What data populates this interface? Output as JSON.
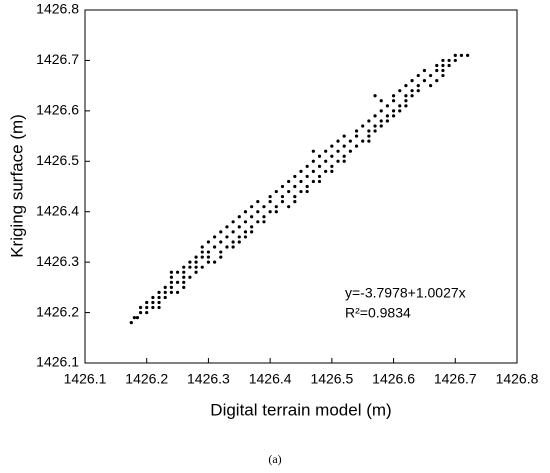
{
  "chart_data": {
    "type": "scatter",
    "x_label": "Digital terrain model (m)",
    "y_label": "Kriging surface (m)",
    "caption": "(a)",
    "annotations": [
      "y=-3.7978+1.0027x",
      "R²=0.9834"
    ],
    "color": "#000000",
    "xlim": [
      1426.1,
      1426.8
    ],
    "ylim": [
      1426.1,
      1426.8
    ],
    "xticks": [
      1426.1,
      1426.2,
      1426.3,
      1426.4,
      1426.5,
      1426.6,
      1426.7,
      1426.8
    ],
    "yticks": [
      1426.1,
      1426.2,
      1426.3,
      1426.4,
      1426.5,
      1426.6,
      1426.7,
      1426.8
    ],
    "grid": false,
    "x": [
      1426.175,
      1426.18,
      1426.185,
      1426.19,
      1426.2,
      1426.19,
      1426.2,
      1426.21,
      1426.22,
      1426.2,
      1426.21,
      1426.22,
      1426.21,
      1426.22,
      1426.23,
      1426.22,
      1426.23,
      1426.24,
      1426.25,
      1426.23,
      1426.24,
      1426.26,
      1426.24,
      1426.25,
      1426.26,
      1426.24,
      1426.26,
      1426.27,
      1426.24,
      1426.25,
      1426.26,
      1426.28,
      1426.26,
      1426.27,
      1426.28,
      1426.29,
      1426.27,
      1426.28,
      1426.3,
      1426.31,
      1426.28,
      1426.29,
      1426.3,
      1426.32,
      1426.29,
      1426.3,
      1426.32,
      1426.29,
      1426.31,
      1426.33,
      1426.34,
      1426.3,
      1426.32,
      1426.34,
      1426.35,
      1426.31,
      1426.33,
      1426.35,
      1426.36,
      1426.32,
      1426.34,
      1426.36,
      1426.37,
      1426.33,
      1426.35,
      1426.37,
      1426.34,
      1426.36,
      1426.38,
      1426.39,
      1426.35,
      1426.37,
      1426.39,
      1426.36,
      1426.38,
      1426.4,
      1426.41,
      1426.37,
      1426.39,
      1426.41,
      1426.43,
      1426.38,
      1426.4,
      1426.42,
      1426.44,
      1426.4,
      1426.42,
      1426.44,
      1426.41,
      1426.43,
      1426.45,
      1426.46,
      1426.42,
      1426.44,
      1426.46,
      1426.43,
      1426.45,
      1426.47,
      1426.48,
      1426.44,
      1426.46,
      1426.48,
      1426.45,
      1426.47,
      1426.49,
      1426.5,
      1426.46,
      1426.48,
      1426.5,
      1426.47,
      1426.49,
      1426.51,
      1426.52,
      1426.48,
      1426.5,
      1426.52,
      1426.47,
      1426.49,
      1426.51,
      1426.53,
      1426.5,
      1426.52,
      1426.54,
      1426.51,
      1426.53,
      1426.55,
      1426.56,
      1426.52,
      1426.54,
      1426.56,
      1426.54,
      1426.56,
      1426.57,
      1426.55,
      1426.57,
      1426.58,
      1426.56,
      1426.58,
      1426.59,
      1426.57,
      1426.59,
      1426.6,
      1426.58,
      1426.6,
      1426.61,
      1426.59,
      1426.61,
      1426.62,
      1426.58,
      1426.6,
      1426.62,
      1426.57,
      1426.6,
      1426.62,
      1426.63,
      1426.61,
      1426.63,
      1426.64,
      1426.62,
      1426.64,
      1426.66,
      1426.63,
      1426.65,
      1426.67,
      1426.64,
      1426.66,
      1426.68,
      1426.65,
      1426.67,
      1426.68,
      1426.67,
      1426.68,
      1426.69,
      1426.68,
      1426.69,
      1426.7,
      1426.7,
      1426.71,
      1426.72
    ],
    "values": [
      1426.18,
      1426.19,
      1426.19,
      1426.2,
      1426.2,
      1426.21,
      1426.21,
      1426.21,
      1426.21,
      1426.22,
      1426.22,
      1426.22,
      1426.23,
      1426.23,
      1426.23,
      1426.24,
      1426.24,
      1426.24,
      1426.24,
      1426.25,
      1426.25,
      1426.25,
      1426.26,
      1426.26,
      1426.26,
      1426.27,
      1426.27,
      1426.27,
      1426.28,
      1426.28,
      1426.28,
      1426.28,
      1426.29,
      1426.29,
      1426.29,
      1426.29,
      1426.3,
      1426.3,
      1426.3,
      1426.3,
      1426.31,
      1426.31,
      1426.31,
      1426.31,
      1426.32,
      1426.32,
      1426.32,
      1426.33,
      1426.33,
      1426.33,
      1426.33,
      1426.34,
      1426.34,
      1426.34,
      1426.34,
      1426.35,
      1426.35,
      1426.35,
      1426.35,
      1426.36,
      1426.36,
      1426.36,
      1426.36,
      1426.37,
      1426.37,
      1426.37,
      1426.38,
      1426.38,
      1426.38,
      1426.38,
      1426.39,
      1426.39,
      1426.39,
      1426.4,
      1426.4,
      1426.4,
      1426.4,
      1426.41,
      1426.41,
      1426.41,
      1426.41,
      1426.42,
      1426.42,
      1426.42,
      1426.42,
      1426.43,
      1426.43,
      1426.43,
      1426.44,
      1426.44,
      1426.44,
      1426.44,
      1426.45,
      1426.45,
      1426.45,
      1426.46,
      1426.46,
      1426.46,
      1426.46,
      1426.47,
      1426.47,
      1426.47,
      1426.48,
      1426.48,
      1426.48,
      1426.48,
      1426.49,
      1426.49,
      1426.49,
      1426.5,
      1426.5,
      1426.5,
      1426.5,
      1426.51,
      1426.51,
      1426.51,
      1426.52,
      1426.52,
      1426.52,
      1426.52,
      1426.53,
      1426.53,
      1426.53,
      1426.54,
      1426.54,
      1426.54,
      1426.54,
      1426.55,
      1426.55,
      1426.55,
      1426.56,
      1426.56,
      1426.56,
      1426.57,
      1426.57,
      1426.57,
      1426.58,
      1426.58,
      1426.58,
      1426.59,
      1426.59,
      1426.59,
      1426.6,
      1426.6,
      1426.6,
      1426.61,
      1426.61,
      1426.61,
      1426.62,
      1426.62,
      1426.62,
      1426.63,
      1426.63,
      1426.63,
      1426.63,
      1426.64,
      1426.64,
      1426.64,
      1426.65,
      1426.65,
      1426.65,
      1426.66,
      1426.66,
      1426.66,
      1426.67,
      1426.67,
      1426.67,
      1426.68,
      1426.68,
      1426.68,
      1426.69,
      1426.69,
      1426.69,
      1426.7,
      1426.7,
      1426.7,
      1426.71,
      1426.71,
      1426.71
    ]
  }
}
